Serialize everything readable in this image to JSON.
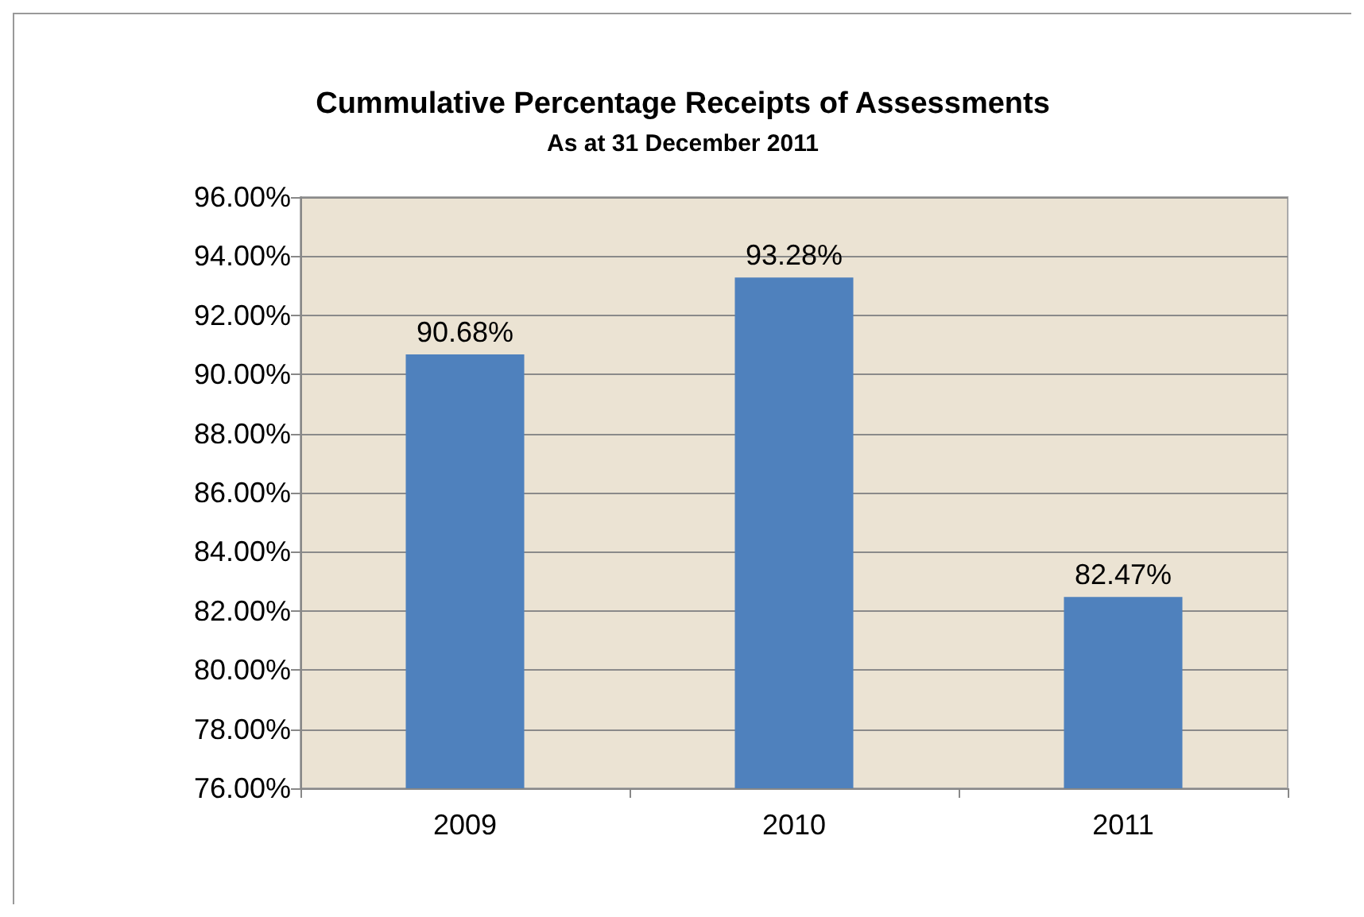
{
  "chart_data": {
    "type": "bar",
    "title": "Cummulative Percentage Receipts of Assessments",
    "subtitle": "As at 31 December 2011",
    "categories": [
      "2009",
      "2010",
      "2011"
    ],
    "values": [
      90.68,
      93.28,
      82.47
    ],
    "color": "#4f81bd",
    "value_labels": [
      "90.68%",
      "93.28%",
      "82.47%"
    ],
    "ylim": [
      76,
      96
    ],
    "yticks": [
      {
        "value": 76,
        "label": "76.00%"
      },
      {
        "value": 78,
        "label": "78.00%"
      },
      {
        "value": 80,
        "label": "80.00%"
      },
      {
        "value": 82,
        "label": "82.00%"
      },
      {
        "value": 84,
        "label": "84.00%"
      },
      {
        "value": 86,
        "label": "86.00%"
      },
      {
        "value": 88,
        "label": "88.00%"
      },
      {
        "value": 90,
        "label": "90.00%"
      },
      {
        "value": 92,
        "label": "92.00%"
      },
      {
        "value": 94,
        "label": "94.00%"
      },
      {
        "value": 96,
        "label": "96.00%"
      }
    ],
    "grid": "y"
  }
}
